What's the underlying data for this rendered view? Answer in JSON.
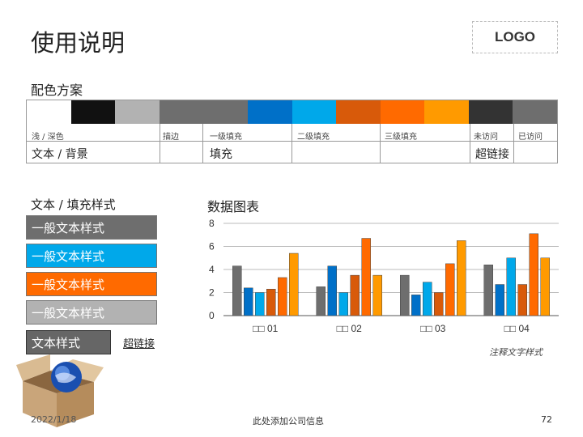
{
  "title": "使用说明",
  "logo": "LOGO",
  "scheme": {
    "title": "配色方案",
    "swatches": [
      "#ffffff",
      "#111111",
      "#b2b2b2",
      "#6e6e6e",
      "#6e6e6e",
      "#0070c8",
      "#00a8ea",
      "#d85a0a",
      "#ff6a00",
      "#ff9a00",
      "#333333",
      "#6e6e6e"
    ],
    "labels": {
      "light_dark": "浅 / 深色",
      "stroke": "描边",
      "fill1": "一级填充",
      "fill2": "二级填充",
      "fill3": "三级填充",
      "unvisited": "未访问",
      "visited": "已访问"
    },
    "row2": {
      "text_bg": "文本 / 背景",
      "fill": "填充",
      "hyperlink": "超链接"
    }
  },
  "styles": {
    "title": "文本 / 填充样式",
    "boxes": [
      {
        "label": "一般文本样式",
        "bg": "#6e6e6e",
        "fg": "#ffffff"
      },
      {
        "label": "一般文本样式",
        "bg": "#00a8ea",
        "fg": "#ffffff"
      },
      {
        "label": "一般文本样式",
        "bg": "#ff6a00",
        "fg": "#ffffff"
      },
      {
        "label": "一般文本样式",
        "bg": "#b2b2b2",
        "fg": "#ffffff"
      }
    ],
    "small_box": "文本样式",
    "hyperlink": "超链接"
  },
  "chart_data": {
    "type": "bar",
    "title": "数据图表",
    "categories": [
      "□□ 01",
      "□□ 02",
      "□□ 03",
      "□□ 04"
    ],
    "ylim": [
      0,
      8
    ],
    "yticks": [
      0,
      2,
      4,
      6,
      8
    ],
    "grid": true,
    "series": [
      {
        "color": "#6e6e6e",
        "values": [
          4.3,
          2.5,
          3.5,
          4.4
        ]
      },
      {
        "color": "#0070c8",
        "values": [
          2.4,
          4.3,
          1.8,
          2.7
        ]
      },
      {
        "color": "#00a8ea",
        "values": [
          2.0,
          2.0,
          2.9,
          5.0
        ]
      },
      {
        "color": "#d85a0a",
        "values": [
          2.3,
          3.5,
          2.0,
          2.7
        ]
      },
      {
        "color": "#ff6a00",
        "values": [
          3.3,
          6.7,
          4.5,
          7.1
        ]
      },
      {
        "color": "#ff9a00",
        "values": [
          5.4,
          3.5,
          6.5,
          5.0
        ]
      }
    ],
    "note": "注释文字样式"
  },
  "footer": {
    "date": "2022/1/18",
    "company": "此处添加公司信息",
    "page": "72"
  }
}
